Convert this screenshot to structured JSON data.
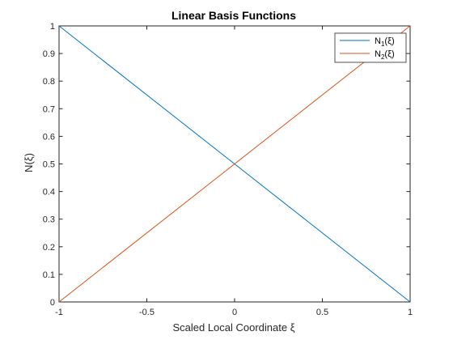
{
  "chart_data": {
    "type": "line",
    "title": "Linear Basis Functions",
    "xlabel": "Scaled  Local  Coordinate  ξ",
    "ylabel": "N(ξ)",
    "xlim": [
      -1,
      1
    ],
    "ylim": [
      0,
      1
    ],
    "xticks": [
      -1,
      -0.5,
      0,
      0.5,
      1
    ],
    "xtick_labels": [
      "-1",
      "-0.5",
      "0",
      "0.5",
      "1"
    ],
    "yticks": [
      0,
      0.1,
      0.2,
      0.3,
      0.4,
      0.5,
      0.6,
      0.7,
      0.8,
      0.9,
      1
    ],
    "ytick_labels": [
      "0",
      "0.1",
      "0.2",
      "0.3",
      "0.4",
      "0.5",
      "0.6",
      "0.7",
      "0.8",
      "0.9",
      "1"
    ],
    "grid": false,
    "legend_position": "top-right",
    "series": [
      {
        "name": "N1(ξ)",
        "label_main": "N",
        "label_sub": "1",
        "label_tail": "(ξ)",
        "color": "#0072BD",
        "x": [
          -1,
          1
        ],
        "y": [
          1,
          0
        ]
      },
      {
        "name": "N2(ξ)",
        "label_main": "N",
        "label_sub": "2",
        "label_tail": "(ξ)",
        "color": "#D95319",
        "x": [
          -1,
          1
        ],
        "y": [
          0,
          1
        ]
      }
    ]
  }
}
